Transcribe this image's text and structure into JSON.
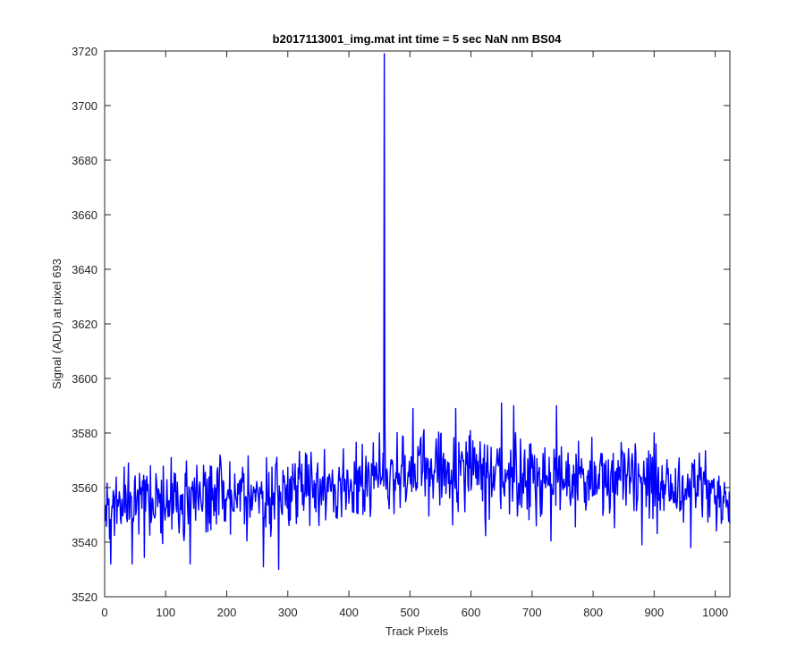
{
  "chart_data": {
    "type": "line",
    "title": "b2017113001_img.mat int time = 5 sec  NaN nm BS04",
    "xlabel": "Track Pixels",
    "ylabel": "Signal (ADU) at pixel 693",
    "xlim": [
      0,
      1024
    ],
    "ylim": [
      3520,
      3720
    ],
    "xticks": [
      0,
      100,
      200,
      300,
      400,
      500,
      600,
      700,
      800,
      900,
      1000
    ],
    "yticks": [
      3520,
      3540,
      3560,
      3580,
      3600,
      3620,
      3640,
      3660,
      3680,
      3700,
      3720
    ],
    "grid": false,
    "legend": "none",
    "series": [
      {
        "color": "#0000ff",
        "x_start": 1,
        "x_end": 1024,
        "noise_amplitude_adu": 8,
        "baseline": [
          [
            1,
            3552
          ],
          [
            100,
            3554
          ],
          [
            200,
            3556
          ],
          [
            300,
            3558
          ],
          [
            400,
            3562
          ],
          [
            455,
            3565
          ],
          [
            500,
            3566
          ],
          [
            600,
            3566
          ],
          [
            700,
            3564
          ],
          [
            800,
            3563
          ],
          [
            900,
            3562
          ],
          [
            1024,
            3556
          ]
        ],
        "spikes": [
          [
            458,
            3719
          ],
          [
            450,
            3580
          ],
          [
            505,
            3589
          ],
          [
            575,
            3589
          ],
          [
            650,
            3591
          ],
          [
            670,
            3590
          ],
          [
            740,
            3590
          ],
          [
            900,
            3580
          ],
          [
            285,
            3530
          ],
          [
            260,
            3531
          ],
          [
            140,
            3532
          ],
          [
            10,
            3532
          ],
          [
            45,
            3532
          ],
          [
            880,
            3539
          ],
          [
            960,
            3538
          ]
        ]
      }
    ]
  }
}
